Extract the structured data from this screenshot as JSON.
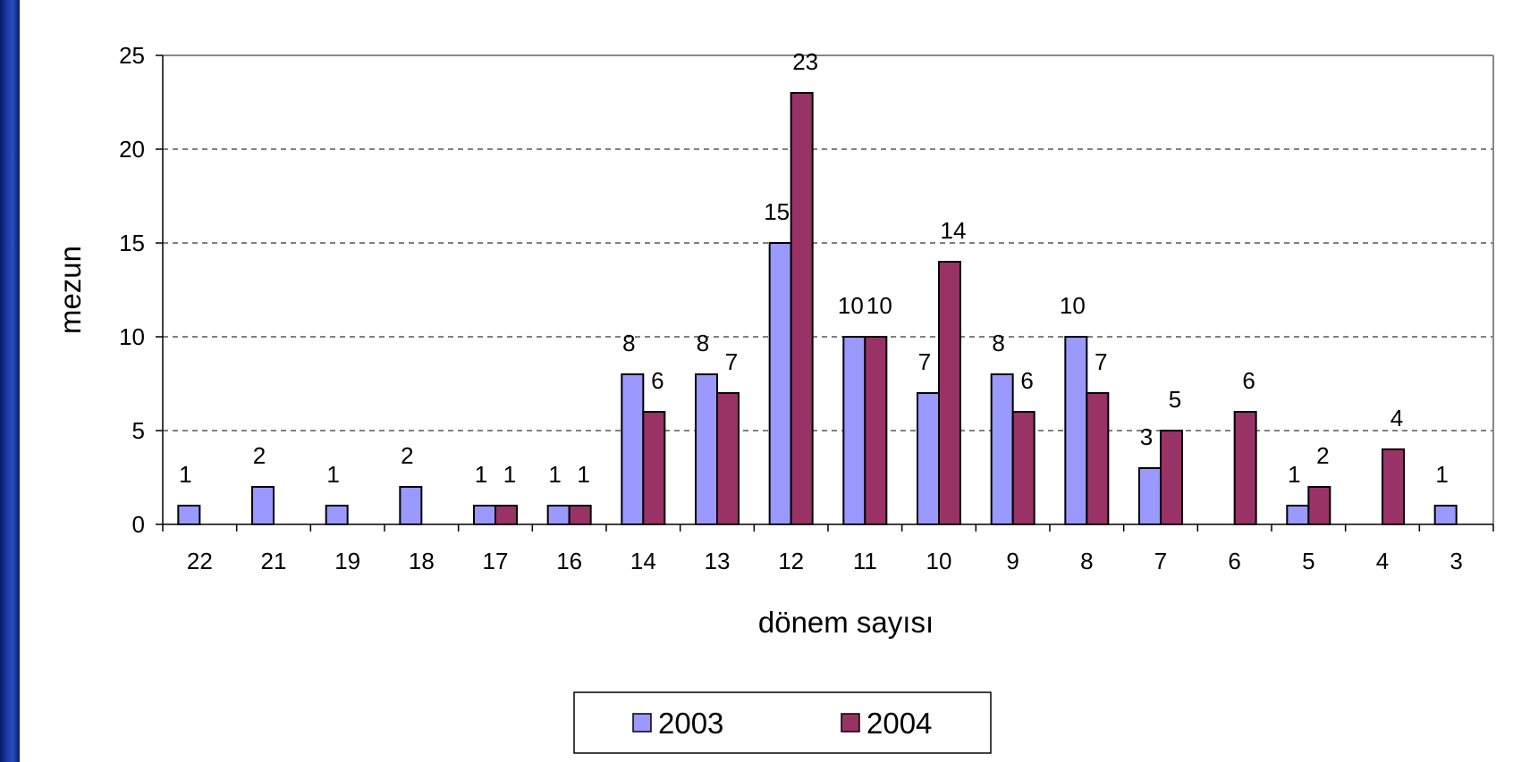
{
  "chart_data": {
    "type": "bar",
    "title": "",
    "xlabel": "dönem sayısı",
    "ylabel": "mezun",
    "ylim": [
      0,
      25
    ],
    "yticks": [
      0,
      5,
      10,
      15,
      20,
      25
    ],
    "grid": "horizontal-dashed",
    "legend_position": "bottom",
    "categories": [
      "22",
      "21",
      "19",
      "18",
      "17",
      "16",
      "14",
      "13",
      "12",
      "11",
      "10",
      "9",
      "8",
      "7",
      "6",
      "5",
      "4",
      "3"
    ],
    "series": [
      {
        "name": "2003",
        "color": "#9999ff",
        "values": [
          1,
          2,
          1,
          2,
          1,
          1,
          8,
          8,
          15,
          10,
          7,
          8,
          10,
          3,
          null,
          1,
          null,
          1
        ]
      },
      {
        "name": "2004",
        "color": "#993366",
        "values": [
          null,
          null,
          null,
          null,
          1,
          1,
          6,
          7,
          23,
          10,
          14,
          6,
          7,
          5,
          6,
          2,
          4,
          null
        ]
      }
    ]
  }
}
